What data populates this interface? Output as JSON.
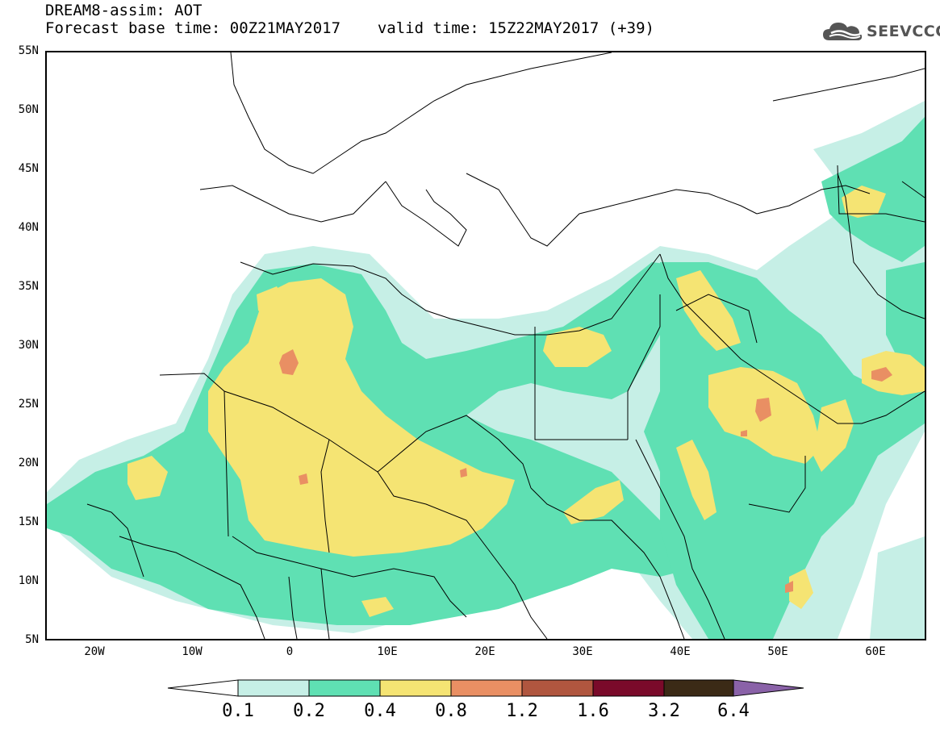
{
  "header": {
    "model_title": "DREAM8-assim: AOT",
    "base_time": "Forecast base time: 00Z21MAY2017",
    "valid_time": "valid time: 15Z22MAY2017 (+39)"
  },
  "logo": {
    "text": "SEEVCCC",
    "icon": "cloud-icon"
  },
  "map": {
    "lon_range": [
      -25,
      65
    ],
    "lat_range": [
      5,
      55
    ],
    "lat_labels": [
      "55N",
      "50N",
      "45N",
      "40N",
      "35N",
      "30N",
      "25N",
      "20N",
      "15N",
      "10N",
      "5N"
    ],
    "lon_labels": [
      "20W",
      "10W",
      "0",
      "10E",
      "20E",
      "30E",
      "40E",
      "50E",
      "60E"
    ]
  },
  "colorbar": {
    "labels": [
      "0.1",
      "0.2",
      "0.4",
      "0.8",
      "1.2",
      "1.6",
      "3.2",
      "6.4"
    ],
    "colors": [
      "#ffffff",
      "#c6efe6",
      "#5fe0b3",
      "#f5e473",
      "#e98f63",
      "#b0563f",
      "#7a0a2a",
      "#3b2a16",
      "#8a62a8"
    ]
  }
}
